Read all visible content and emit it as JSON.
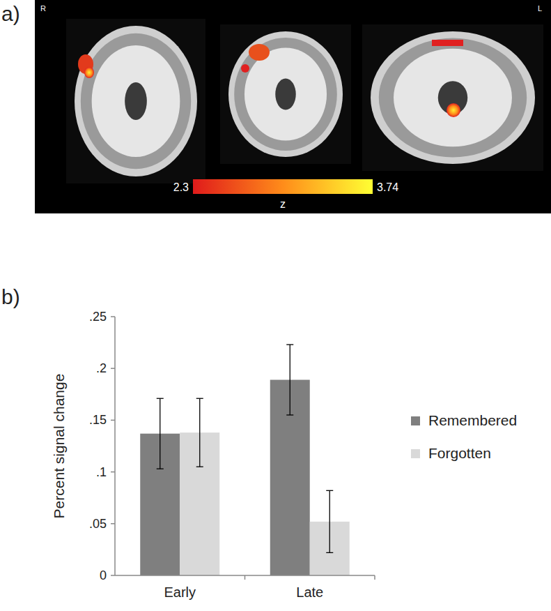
{
  "panel_a": {
    "label": "a)",
    "left_side": "R",
    "right_side": "L",
    "colorbar": {
      "range": [
        2.3,
        3.74
      ],
      "ticks": [
        2.3,
        3.74
      ],
      "label": "z"
    }
  },
  "chart_data": {
    "type": "bar",
    "annotations": [
      "b)"
    ],
    "y_label": "Percent signal change",
    "categories": [
      "Early",
      "Late"
    ],
    "series": [
      {
        "name": "Remembered",
        "color": "#7f7f7f",
        "values": [
          0.137,
          0.189
        ],
        "errors": [
          0.034,
          0.034
        ]
      },
      {
        "name": "Forgotten",
        "color": "#d9d9d9",
        "values": [
          0.138,
          0.052
        ],
        "errors": [
          0.033,
          0.03
        ]
      }
    ],
    "ylim": [
      0,
      0.25
    ],
    "yticks": [
      0,
      {
        "value": 0.05,
        "label": ".05"
      },
      {
        "value": 0.1,
        "label": ".1"
      },
      {
        "value": 0.15,
        "label": ".15"
      },
      {
        "value": 0.2,
        "label": ".2"
      },
      {
        "value": 0.25,
        "label": ".25"
      }
    ],
    "grid": false,
    "legend": "right"
  }
}
